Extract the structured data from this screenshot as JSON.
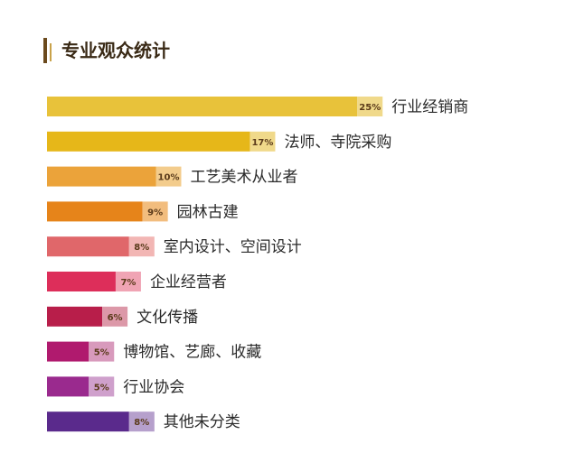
{
  "title": "专业观众统计",
  "colors": {
    "title_accent": "#6b4a1d",
    "title_text": "#3a2a16"
  },
  "chart_data": {
    "type": "bar",
    "orientation": "horizontal",
    "title": "专业观众统计",
    "categories": [
      "行业经销商",
      "法师、寺院采购",
      "工艺美术从业者",
      "园林古建",
      "室内设计、空间设计",
      "企业经营者",
      "文化传播",
      "博物馆、艺廊、收藏",
      "行业协会",
      "其他未分类"
    ],
    "values": [
      25,
      17,
      10,
      9,
      8,
      7,
      6,
      5,
      5,
      8
    ],
    "value_labels": [
      "25%",
      "17%",
      "10%",
      "9%",
      "8%",
      "7%",
      "6%",
      "5%",
      "5%",
      "8%"
    ],
    "colors": [
      "#e8c23a",
      "#e6b719",
      "#eba33a",
      "#e6841a",
      "#e0676a",
      "#dd2e5a",
      "#b81e4a",
      "#b01a6e",
      "#9a2a8e",
      "#5a2a8c"
    ],
    "label_bg_colors": [
      "#f0d98a",
      "#f0d98a",
      "#f3cc8c",
      "#f2bd7e",
      "#f2b6b4",
      "#f0a4b4",
      "#dc98a8",
      "#d89abc",
      "#cfa0cc",
      "#b6a0cc"
    ],
    "xlabel": "",
    "ylabel": "",
    "grid": false,
    "legend": "none"
  }
}
